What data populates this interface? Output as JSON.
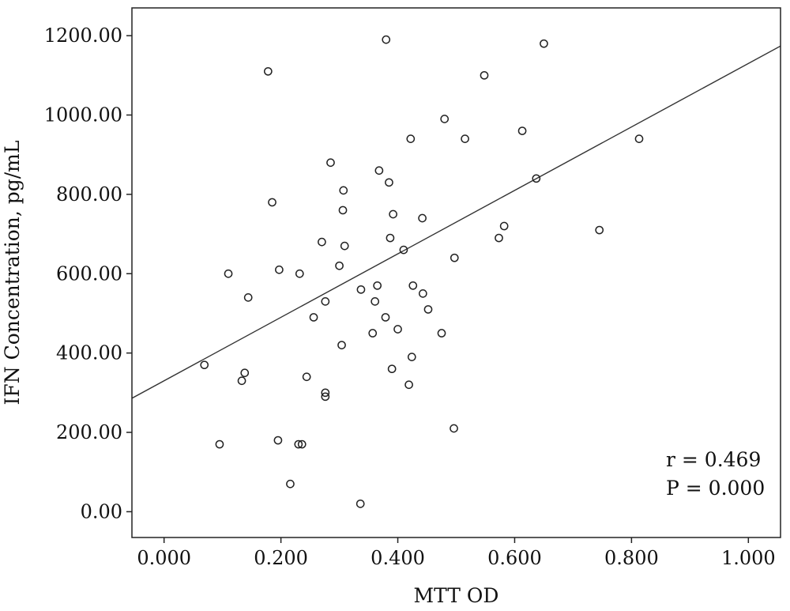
{
  "chart_data": {
    "type": "scatter",
    "xlabel": "MTT OD",
    "ylabel": "IFN Concentration, pg/mL",
    "xlim": [
      -0.055,
      1.055
    ],
    "ylim": [
      -65,
      1270
    ],
    "x_ticks": [
      "0.000",
      "0.200",
      "0.400",
      "0.600",
      "0.800",
      "1.000"
    ],
    "y_ticks": [
      "0.00",
      "200.00",
      "400.00",
      "600.00",
      "800.00",
      "1000.00",
      "1200.00"
    ],
    "grid": false,
    "legend": "none",
    "fit_line": {
      "intercept": 330,
      "slope": 800
    },
    "annotations": [
      "r = 0.469",
      "P = 0.000"
    ],
    "points": [
      {
        "x": 0.38,
        "y": 1190
      },
      {
        "x": 0.65,
        "y": 1180
      },
      {
        "x": 0.178,
        "y": 1110
      },
      {
        "x": 0.548,
        "y": 1100
      },
      {
        "x": 0.48,
        "y": 990
      },
      {
        "x": 0.613,
        "y": 960
      },
      {
        "x": 0.422,
        "y": 940
      },
      {
        "x": 0.515,
        "y": 940
      },
      {
        "x": 0.813,
        "y": 940
      },
      {
        "x": 0.285,
        "y": 880
      },
      {
        "x": 0.368,
        "y": 860
      },
      {
        "x": 0.385,
        "y": 830
      },
      {
        "x": 0.637,
        "y": 840
      },
      {
        "x": 0.307,
        "y": 810
      },
      {
        "x": 0.185,
        "y": 780
      },
      {
        "x": 0.306,
        "y": 760
      },
      {
        "x": 0.392,
        "y": 750
      },
      {
        "x": 0.442,
        "y": 740
      },
      {
        "x": 0.582,
        "y": 720
      },
      {
        "x": 0.745,
        "y": 710
      },
      {
        "x": 0.27,
        "y": 680
      },
      {
        "x": 0.387,
        "y": 690
      },
      {
        "x": 0.573,
        "y": 690
      },
      {
        "x": 0.309,
        "y": 670
      },
      {
        "x": 0.41,
        "y": 660
      },
      {
        "x": 0.497,
        "y": 640
      },
      {
        "x": 0.3,
        "y": 620
      },
      {
        "x": 0.197,
        "y": 610
      },
      {
        "x": 0.11,
        "y": 600
      },
      {
        "x": 0.232,
        "y": 600
      },
      {
        "x": 0.365,
        "y": 570
      },
      {
        "x": 0.426,
        "y": 570
      },
      {
        "x": 0.337,
        "y": 560
      },
      {
        "x": 0.443,
        "y": 550
      },
      {
        "x": 0.144,
        "y": 540
      },
      {
        "x": 0.276,
        "y": 530
      },
      {
        "x": 0.361,
        "y": 530
      },
      {
        "x": 0.452,
        "y": 510
      },
      {
        "x": 0.256,
        "y": 490
      },
      {
        "x": 0.379,
        "y": 490
      },
      {
        "x": 0.4,
        "y": 460
      },
      {
        "x": 0.357,
        "y": 450
      },
      {
        "x": 0.475,
        "y": 450
      },
      {
        "x": 0.304,
        "y": 420
      },
      {
        "x": 0.424,
        "y": 390
      },
      {
        "x": 0.069,
        "y": 370
      },
      {
        "x": 0.39,
        "y": 360
      },
      {
        "x": 0.138,
        "y": 350
      },
      {
        "x": 0.244,
        "y": 340
      },
      {
        "x": 0.133,
        "y": 330
      },
      {
        "x": 0.419,
        "y": 320
      },
      {
        "x": 0.276,
        "y": 300
      },
      {
        "x": 0.276,
        "y": 290
      },
      {
        "x": 0.496,
        "y": 210
      },
      {
        "x": 0.195,
        "y": 180
      },
      {
        "x": 0.095,
        "y": 170
      },
      {
        "x": 0.23,
        "y": 170
      },
      {
        "x": 0.236,
        "y": 170
      },
      {
        "x": 0.216,
        "y": 70
      },
      {
        "x": 0.336,
        "y": 20
      }
    ]
  }
}
